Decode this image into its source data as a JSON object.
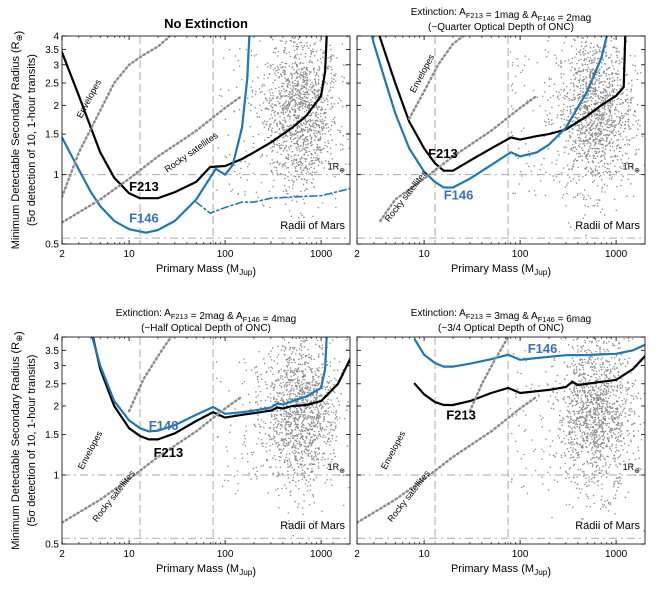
{
  "colors": {
    "f213": "#000000",
    "f146": "#1f77b4",
    "dots": "#888888",
    "dotted": "#8c8c8c",
    "dashed": "#aaaaaa",
    "label_f146": "#3b6fc4"
  },
  "shared": {
    "xlabel": "Primary Mass (M_Jup)",
    "ylabel_line1": "Minimum Detectable Secondary Radius (R_⊕)",
    "ylabel_line2": "(5σ detection of 10, 1-hour transits)",
    "xticks": [
      2,
      10,
      100,
      1000
    ],
    "xtick_labels": [
      "2",
      "10",
      "100",
      "1000"
    ],
    "yticks": [
      0.5,
      1,
      1.5,
      2,
      2.5,
      3,
      3.5,
      4
    ],
    "ytick_labels": [
      "0.5",
      "1",
      "1.5",
      "2",
      "2.5",
      "3",
      "3.5",
      "4"
    ],
    "xlim": [
      2,
      2000
    ],
    "ylim": [
      0.5,
      4
    ],
    "vlines_x": [
      13,
      75
    ],
    "hline_earth": 1,
    "hline_mars": 0.53,
    "earth_label": "1R⊕",
    "mars_label": "Radii of Mars",
    "envelopes_label": "Envelopes",
    "rocky_label": "Rocky satellites"
  },
  "panels": [
    {
      "title_line1": "No Extinction",
      "title_line2": "",
      "f213_label": "F213",
      "f146_label": "F146",
      "show_xlabel": true,
      "show_ylabel": true
    },
    {
      "title_line1": "Extinction: A_F213 = 1mag & A_F146 = 2mag",
      "title_line2": "(~Quarter Optical Depth of ONC)",
      "f213_label": "F213",
      "f146_label": "F146",
      "show_xlabel": true,
      "show_ylabel": false
    },
    {
      "title_line1": "Extinction: A_F213 = 2mag & A_F146 = 4mag",
      "title_line2": "(~Half Optical Depth of ONC)",
      "f213_label": "F213",
      "f146_label": "F146",
      "show_xlabel": true,
      "show_ylabel": true
    },
    {
      "title_line1": "Extinction: A_F213 = 3mag & A_F146 = 6mag",
      "title_line2": "(~3/4 Optical Depth of ONC)",
      "f213_label": "F213",
      "f146_label": "F146",
      "show_xlabel": true,
      "show_ylabel": false
    }
  ],
  "chart_data": [
    {
      "type": "line",
      "title": "No Extinction",
      "xlabel": "Primary Mass (M_Jup)",
      "ylabel": "Minimum Detectable Secondary Radius (R_⊕)",
      "xscale": "log",
      "yscale": "log",
      "xlim": [
        2,
        2000
      ],
      "ylim": [
        0.5,
        4
      ],
      "series": [
        {
          "name": "F213",
          "style": "solid-black",
          "x": [
            2,
            3,
            4,
            5,
            7,
            10,
            13,
            20,
            30,
            50,
            70,
            100,
            150,
            200,
            300,
            500,
            700,
            1000,
            1100,
            1150
          ],
          "y": [
            3.4,
            2.2,
            1.6,
            1.25,
            0.97,
            0.83,
            0.79,
            0.79,
            0.84,
            0.93,
            1.08,
            1.09,
            1.17,
            1.25,
            1.38,
            1.6,
            1.8,
            2.2,
            2.8,
            4.2
          ]
        },
        {
          "name": "F146",
          "style": "solid-blue",
          "x": [
            2,
            3,
            4,
            5,
            7,
            10,
            15,
            20,
            30,
            50,
            80,
            100,
            120,
            150,
            170,
            180
          ],
          "y": [
            1.45,
            1.05,
            0.84,
            0.73,
            0.63,
            0.58,
            0.56,
            0.575,
            0.63,
            0.78,
            1.06,
            1.0,
            1.1,
            1.6,
            2.6,
            4.2
          ]
        },
        {
          "name": "F146 (dash-dot)",
          "style": "dashdot-blue",
          "x": [
            50,
            70,
            100,
            150,
            200,
            300,
            500,
            1000,
            2000
          ],
          "y": [
            0.76,
            0.68,
            0.72,
            0.76,
            0.76,
            0.79,
            0.8,
            0.81,
            0.87
          ]
        },
        {
          "name": "Envelopes",
          "style": "dotted-gray",
          "x": [
            2,
            3,
            5,
            7,
            10,
            14,
            20,
            25,
            30
          ],
          "y": [
            0.8,
            1.25,
            1.9,
            2.5,
            3.0,
            3.3,
            3.6,
            3.9,
            4.2
          ]
        },
        {
          "name": "Rocky satellites",
          "style": "dotted-gray",
          "x": [
            2,
            5,
            10,
            20,
            50,
            100,
            150
          ],
          "y": [
            0.62,
            0.78,
            0.96,
            1.2,
            1.55,
            1.95,
            2.2
          ]
        }
      ]
    },
    {
      "type": "line",
      "title": "Extinction: A_F213 = 1mag & A_F146 = 2mag",
      "xscale": "log",
      "yscale": "log",
      "xlim": [
        2,
        2000
      ],
      "ylim": [
        0.5,
        4
      ],
      "series": [
        {
          "name": "F213",
          "style": "solid-black",
          "x": [
            3.3,
            4,
            5,
            7,
            10,
            13,
            16,
            20,
            30,
            50,
            80,
            100,
            150,
            200,
            300,
            500,
            700,
            1000,
            1200,
            1250
          ],
          "y": [
            4.2,
            3.3,
            2.5,
            1.7,
            1.3,
            1.12,
            1.04,
            1.04,
            1.15,
            1.3,
            1.45,
            1.42,
            1.47,
            1.5,
            1.57,
            1.8,
            2.0,
            2.2,
            2.4,
            4.2
          ]
        },
        {
          "name": "F146",
          "style": "solid-blue",
          "x": [
            2.8,
            3,
            4,
            5,
            7,
            10,
            13,
            16,
            20,
            30,
            50,
            80,
            100,
            150,
            200,
            300,
            500,
            700,
            800,
            850
          ],
          "y": [
            4.2,
            3.7,
            2.5,
            1.85,
            1.3,
            1.03,
            0.93,
            0.88,
            0.88,
            0.96,
            1.1,
            1.25,
            1.2,
            1.25,
            1.35,
            1.6,
            2.3,
            3.2,
            4.0,
            4.2
          ]
        },
        {
          "name": "Envelopes",
          "style": "dotted-gray",
          "x": [
            7,
            10,
            14,
            20,
            30
          ],
          "y": [
            1.75,
            2.3,
            3.0,
            3.7,
            4.2
          ]
        },
        {
          "name": "Rocky satellites",
          "style": "dotted-gray",
          "x": [
            3.5,
            5,
            10,
            20,
            50,
            100,
            150
          ],
          "y": [
            0.63,
            0.78,
            0.96,
            1.2,
            1.55,
            1.95,
            2.2
          ]
        }
      ]
    },
    {
      "type": "line",
      "title": "Extinction: A_F213 = 2mag & A_F146 = 4mag",
      "xscale": "log",
      "yscale": "log",
      "xlim": [
        2,
        2000
      ],
      "ylim": [
        0.5,
        4
      ],
      "series": [
        {
          "name": "F213",
          "style": "solid-black",
          "x": [
            4.1,
            5,
            7,
            10,
            13,
            16,
            20,
            30,
            50,
            75,
            100,
            150,
            200,
            300,
            350,
            400,
            500,
            700,
            1000,
            1500,
            2000
          ],
          "y": [
            4.2,
            2.9,
            2.0,
            1.6,
            1.48,
            1.43,
            1.43,
            1.52,
            1.72,
            1.88,
            1.78,
            1.83,
            1.86,
            1.91,
            1.97,
            1.95,
            2.0,
            2.02,
            2.1,
            2.5,
            3.2
          ]
        },
        {
          "name": "F146",
          "style": "solid-blue",
          "x": [
            4.0,
            5,
            7,
            10,
            13,
            16,
            20,
            30,
            50,
            75,
            100,
            150,
            200,
            300,
            350,
            400,
            500,
            700,
            1000,
            1100,
            1150
          ],
          "y": [
            4.2,
            3.0,
            2.1,
            1.73,
            1.6,
            1.55,
            1.56,
            1.65,
            1.83,
            1.98,
            1.85,
            1.88,
            1.91,
            1.97,
            2.05,
            2.03,
            2.1,
            2.2,
            2.4,
            2.9,
            4.2
          ]
        },
        {
          "name": "Envelopes",
          "style": "dotted-gray",
          "x": [
            10,
            14,
            20,
            25,
            30
          ],
          "y": [
            1.9,
            2.6,
            3.3,
            3.8,
            4.2
          ]
        },
        {
          "name": "Rocky satellites",
          "style": "dotted-gray",
          "x": [
            2,
            5,
            10,
            20,
            50,
            100,
            150
          ],
          "y": [
            0.62,
            0.78,
            0.96,
            1.2,
            1.55,
            1.95,
            2.2
          ]
        }
      ]
    },
    {
      "type": "line",
      "title": "Extinction: A_F213 = 3mag & A_F146 = 6mag",
      "xscale": "log",
      "yscale": "log",
      "xlim": [
        2,
        2000
      ],
      "ylim": [
        0.5,
        4
      ],
      "series": [
        {
          "name": "F213",
          "style": "solid-black",
          "x": [
            8,
            10,
            13,
            16,
            20,
            30,
            50,
            75,
            100,
            150,
            200,
            300,
            350,
            400,
            500,
            700,
            1000,
            1500,
            2000
          ],
          "y": [
            2.5,
            2.25,
            2.08,
            2.02,
            2.02,
            2.1,
            2.28,
            2.4,
            2.28,
            2.32,
            2.35,
            2.42,
            2.55,
            2.47,
            2.5,
            2.55,
            2.6,
            2.9,
            3.3
          ]
        },
        {
          "name": "F146",
          "style": "solid-blue",
          "x": [
            8,
            10,
            13,
            16,
            20,
            30,
            50,
            75,
            100,
            150,
            200,
            300,
            500,
            700,
            1000,
            1500,
            2000
          ],
          "y": [
            3.9,
            3.35,
            3.08,
            2.97,
            2.97,
            3.06,
            3.2,
            3.35,
            3.18,
            3.24,
            3.28,
            3.33,
            3.34,
            3.36,
            3.38,
            3.5,
            3.7
          ]
        },
        {
          "name": "Envelopes",
          "style": "dotted-gray",
          "x": [
            30,
            40,
            55,
            70,
            80
          ],
          "y": [
            1.9,
            2.5,
            3.2,
            3.8,
            4.2
          ]
        },
        {
          "name": "Rocky satellites",
          "style": "dotted-gray",
          "x": [
            2,
            5,
            10,
            20,
            50,
            100,
            150
          ],
          "y": [
            0.62,
            0.78,
            0.96,
            1.2,
            1.55,
            1.95,
            2.2
          ]
        }
      ]
    }
  ]
}
